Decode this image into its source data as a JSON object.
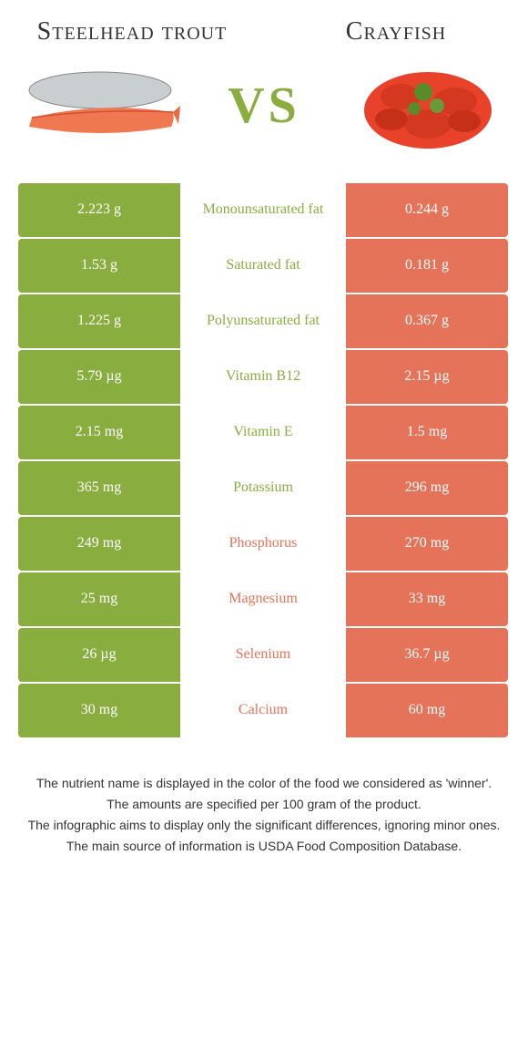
{
  "left_title": "Steelhead trout",
  "right_title": "Crayfish",
  "vs": "VS",
  "colors": {
    "left": "#8aad3f",
    "right": "#e57359",
    "label_left": "#8aad3f",
    "label_right": "#e57359"
  },
  "rows": [
    {
      "left": "2.223 g",
      "label": "Monounsaturated fat",
      "right": "0.244 g",
      "winner": "left"
    },
    {
      "left": "1.53 g",
      "label": "Saturated fat",
      "right": "0.181 g",
      "winner": "left"
    },
    {
      "left": "1.225 g",
      "label": "Polyunsaturated fat",
      "right": "0.367 g",
      "winner": "left"
    },
    {
      "left": "5.79 µg",
      "label": "Vitamin B12",
      "right": "2.15 µg",
      "winner": "left"
    },
    {
      "left": "2.15 mg",
      "label": "Vitamin E",
      "right": "1.5 mg",
      "winner": "left"
    },
    {
      "left": "365 mg",
      "label": "Potassium",
      "right": "296 mg",
      "winner": "left"
    },
    {
      "left": "249 mg",
      "label": "Phosphorus",
      "right": "270 mg",
      "winner": "right"
    },
    {
      "left": "25 mg",
      "label": "Magnesium",
      "right": "33 mg",
      "winner": "right"
    },
    {
      "left": "26 µg",
      "label": "Selenium",
      "right": "36.7 µg",
      "winner": "right"
    },
    {
      "left": "30 mg",
      "label": "Calcium",
      "right": "60 mg",
      "winner": "right"
    }
  ],
  "footer": [
    "The nutrient name is displayed in the color of the food we considered as 'winner'.",
    "The amounts are specified per 100 gram of the product.",
    "The infographic aims to display only the significant differences, ignoring minor ones.",
    "The main source of information is USDA Food Composition Database."
  ]
}
